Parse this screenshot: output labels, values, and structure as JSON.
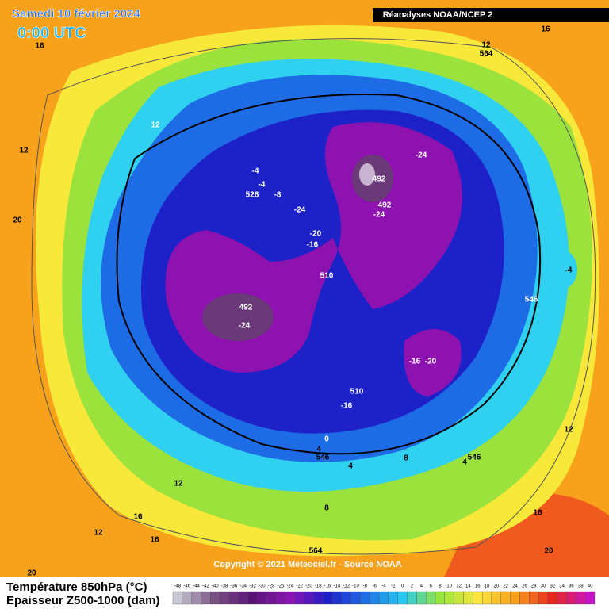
{
  "header": {
    "date": "Samedi 10 février 2024",
    "time": "0:00 UTC",
    "source_box": "Réanalyses NOAA/NCEP 2"
  },
  "copyright": "Copyright © 2021 Meteociel.fr - Source NOAA",
  "legend": {
    "line1": "Température 850hPa (°C)",
    "line2": "Epaisseur Z500-1000 (dam)",
    "scale": [
      -48,
      -46,
      -44,
      -42,
      -40,
      -38,
      -36,
      -34,
      -32,
      -30,
      -28,
      -26,
      -24,
      -22,
      -20,
      -18,
      -16,
      -14,
      -12,
      -10,
      -8,
      -6,
      -4,
      -2,
      0,
      2,
      4,
      6,
      8,
      10,
      12,
      14,
      16,
      18,
      20,
      22,
      24,
      26,
      28,
      30,
      32,
      34,
      36,
      38,
      40
    ]
  },
  "map_labels": [
    "16",
    "12",
    "12",
    "20",
    "-4",
    "-4",
    "528",
    "-8",
    "-24",
    "492",
    "-24",
    "492",
    "-24",
    "-20",
    "-16",
    "510",
    "492",
    "-24",
    "-16",
    "-20",
    "510",
    "-16",
    "0",
    "4",
    "546",
    "8",
    "4",
    "4",
    "546",
    "546",
    "-4",
    "12",
    "564",
    "16",
    "12",
    "16",
    "20",
    "12",
    "16",
    "12",
    "16",
    "564",
    "8",
    "20"
  ]
}
